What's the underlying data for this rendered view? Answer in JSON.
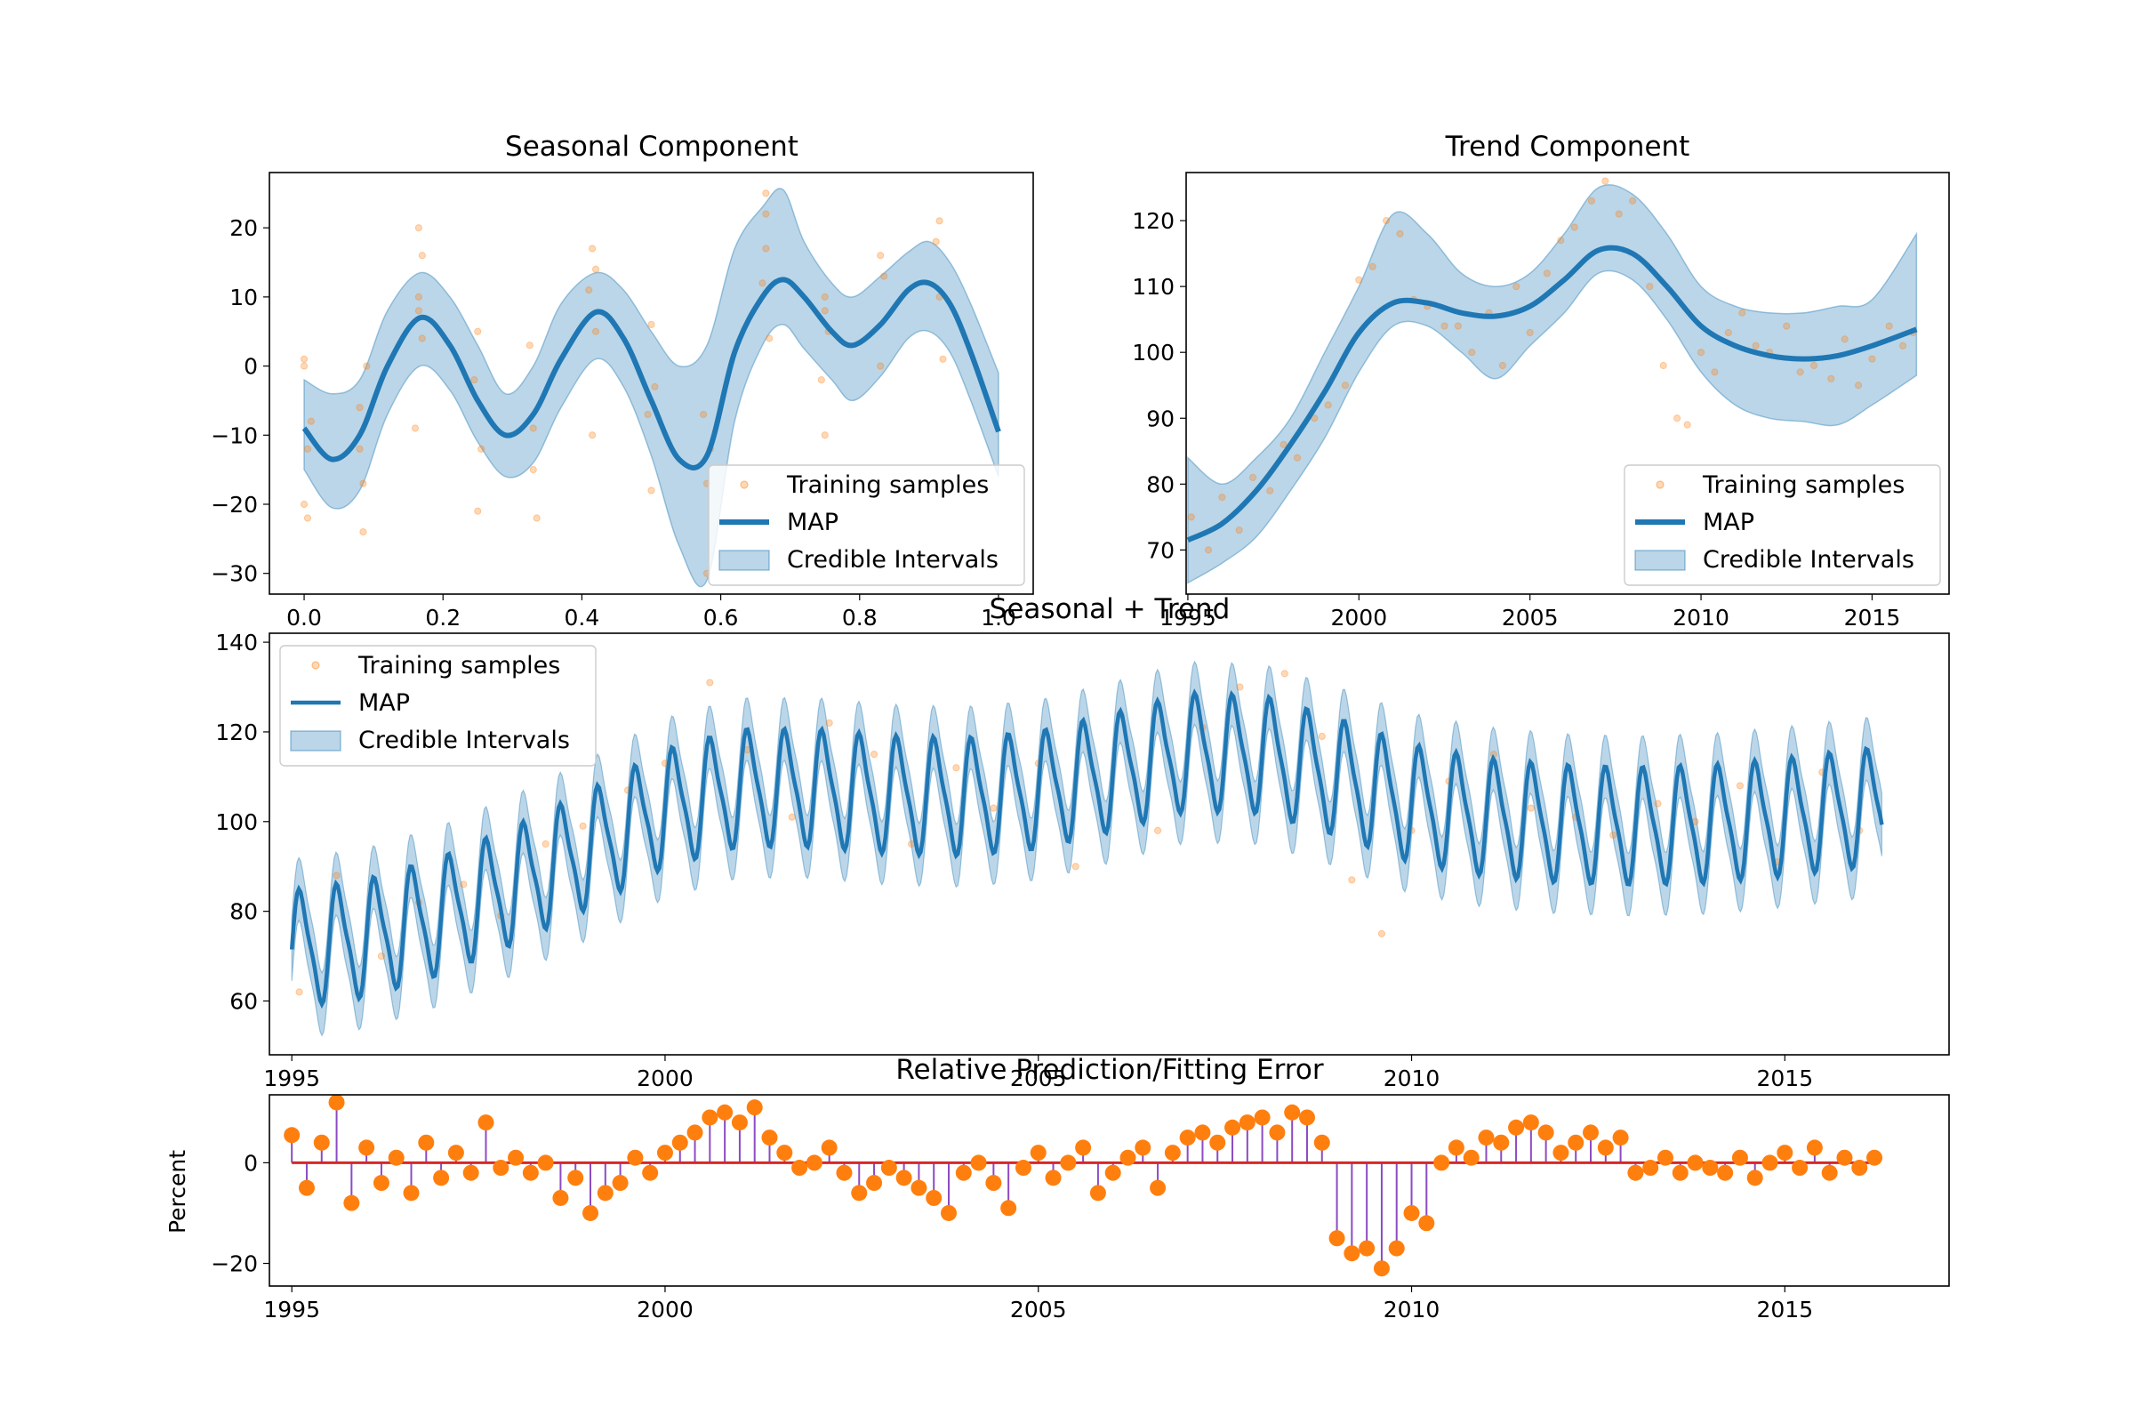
{
  "colors": {
    "map": "#1f77b4",
    "band": "#1f77b4",
    "samples": "#ff7f0e",
    "stem": "#8c4bc2",
    "baseline": "#d62728",
    "error_marker": "#ff7f0e"
  },
  "chart_data": [
    {
      "id": "seasonal",
      "type": "line",
      "title": "Seasonal Component",
      "xlabel": "",
      "ylabel": "",
      "xlim": [
        -0.05,
        1.05
      ],
      "ylim": [
        -33,
        28
      ],
      "xticks": [
        0.0,
        0.2,
        0.4,
        0.6,
        0.8,
        1.0
      ],
      "xtick_labels": [
        "0.0",
        "0.2",
        "0.4",
        "0.6",
        "0.8",
        "1.0"
      ],
      "yticks": [
        -30,
        -20,
        -10,
        0,
        10,
        20
      ],
      "ytick_labels": [
        "−30",
        "−20",
        "−10",
        "0",
        "10",
        "20"
      ],
      "legend": {
        "position": "lower-right",
        "entries": [
          "Training samples",
          "MAP",
          "Credible Intervals"
        ]
      },
      "series": [
        {
          "name": "MAP",
          "kind": "line",
          "x": [
            0.0,
            0.04,
            0.08,
            0.12,
            0.167,
            0.21,
            0.25,
            0.29,
            0.33,
            0.37,
            0.42,
            0.46,
            0.5,
            0.54,
            0.58,
            0.62,
            0.66,
            0.69,
            0.72,
            0.76,
            0.79,
            0.83,
            0.87,
            0.9,
            0.93,
            0.96,
            1.0
          ],
          "y": [
            -9,
            -13.5,
            -10,
            0,
            7,
            3,
            -5,
            -10,
            -7,
            1,
            7.8,
            4,
            -5,
            -13.5,
            -13,
            2,
            10,
            12.5,
            10,
            5,
            3,
            6,
            11,
            12,
            9,
            2,
            -9.5
          ]
        },
        {
          "name": "Credible Intervals",
          "kind": "band",
          "x": [
            0.0,
            0.04,
            0.08,
            0.12,
            0.167,
            0.21,
            0.25,
            0.29,
            0.33,
            0.37,
            0.42,
            0.46,
            0.5,
            0.54,
            0.58,
            0.62,
            0.66,
            0.69,
            0.72,
            0.76,
            0.79,
            0.83,
            0.87,
            0.9,
            0.93,
            0.96,
            1.0
          ],
          "lower": [
            -15,
            -20.5,
            -18,
            -7,
            0,
            -3.5,
            -11,
            -16,
            -14,
            -6,
            1,
            -3,
            -13,
            -26,
            -31,
            -8,
            3,
            6,
            2.5,
            -2,
            -5,
            -1.5,
            4,
            5,
            2,
            -5,
            -16
          ],
          "upper": [
            -2,
            -4,
            -2,
            8,
            13.5,
            10,
            3,
            -4,
            0,
            9,
            13.5,
            11,
            5,
            0,
            3,
            17,
            23,
            25.5,
            18,
            12,
            10,
            13,
            16.5,
            18,
            15,
            9,
            -1
          ]
        },
        {
          "name": "Training samples",
          "kind": "scatter",
          "x": [
            0.0,
            0.0,
            0.005,
            0.01,
            0.0,
            0.005,
            0.08,
            0.085,
            0.08,
            0.09,
            0.085,
            0.165,
            0.165,
            0.17,
            0.16,
            0.17,
            0.165,
            0.25,
            0.245,
            0.25,
            0.255,
            0.33,
            0.33,
            0.335,
            0.325,
            0.415,
            0.415,
            0.42,
            0.41,
            0.42,
            0.5,
            0.5,
            0.495,
            0.505,
            0.58,
            0.58,
            0.585,
            0.575,
            0.665,
            0.665,
            0.66,
            0.67,
            0.665,
            0.75,
            0.75,
            0.745,
            0.755,
            0.75,
            0.83,
            0.83,
            0.835,
            0.915,
            0.915,
            0.92,
            0.91
          ],
          "y": [
            -20,
            0,
            -12,
            -8,
            1,
            -22,
            -6,
            -24,
            -12,
            0,
            -17,
            20,
            8,
            4,
            -9,
            16,
            10,
            -21,
            -2,
            5,
            -12,
            -9,
            -15,
            -22,
            3,
            17,
            -10,
            5,
            11,
            14,
            -18,
            6,
            -7,
            -3,
            -30,
            -17,
            -12,
            -7,
            25,
            17,
            12,
            4,
            22,
            -10,
            10,
            -2,
            5,
            8,
            16,
            0,
            13,
            21,
            10,
            1,
            18
          ]
        }
      ]
    },
    {
      "id": "trend",
      "type": "line",
      "title": "Trend Component",
      "xlabel": "",
      "ylabel": "",
      "xlim": [
        1994.95,
        2017.25
      ],
      "ylim": [
        63.3,
        127.3
      ],
      "xticks": [
        1995,
        2000,
        2005,
        2010,
        2015
      ],
      "xtick_labels": [
        "1995",
        "2000",
        "2005",
        "2010",
        "2015"
      ],
      "yticks": [
        70,
        80,
        90,
        100,
        110,
        120
      ],
      "ytick_labels": [
        "70",
        "80",
        "90",
        "100",
        "110",
        "120"
      ],
      "legend": {
        "position": "lower-right",
        "entries": [
          "Training samples",
          "MAP",
          "Credible Intervals"
        ]
      },
      "series": [
        {
          "name": "MAP",
          "kind": "line",
          "x": [
            1995,
            1996,
            1997,
            1998,
            1999,
            2000,
            2001,
            2002,
            2003,
            2004,
            2005,
            2006,
            2007,
            2008,
            2009,
            2010,
            2011,
            2012,
            2013,
            2014,
            2015,
            2016.3
          ],
          "y": [
            71.5,
            74,
            79,
            86,
            94,
            103,
            107.5,
            107.5,
            106,
            105.5,
            107,
            111,
            115.5,
            115,
            110,
            104,
            101,
            99.5,
            99,
            99.5,
            101,
            103.5
          ]
        },
        {
          "name": "Credible Intervals",
          "kind": "band",
          "x": [
            1995,
            1996,
            1997,
            1998,
            1999,
            2000,
            2001,
            2002,
            2003,
            2004,
            2005,
            2006,
            2007,
            2008,
            2009,
            2010,
            2011,
            2012,
            2013,
            2014,
            2015,
            2016.3
          ],
          "lower": [
            65,
            68,
            72,
            79,
            87,
            97,
            104,
            104,
            100,
            96,
            101,
            106,
            112,
            111,
            105,
            97,
            92,
            90,
            89.5,
            89,
            92,
            96.5
          ],
          "upper": [
            84,
            80,
            84,
            90,
            100,
            110,
            121,
            118,
            112,
            110,
            112,
            118,
            125,
            124,
            118,
            110,
            107,
            106,
            106,
            107,
            108,
            118
          ]
        },
        {
          "name": "Training samples",
          "kind": "scatter",
          "x": [
            1995.1,
            1995.6,
            1996.0,
            1996.5,
            1996.9,
            1997.4,
            1997.8,
            1998.2,
            1998.7,
            1999.1,
            1999.6,
            2000.0,
            2000.4,
            2000.8,
            2001.2,
            2001.6,
            2002.0,
            2002.5,
            2002.9,
            2003.3,
            2003.8,
            2004.2,
            2004.6,
            2005.0,
            2005.5,
            2005.9,
            2006.3,
            2006.8,
            2007.2,
            2007.6,
            2008.0,
            2008.5,
            2008.9,
            2009.3,
            2009.6,
            2010.0,
            2010.4,
            2010.8,
            2011.2,
            2011.6,
            2012.0,
            2012.5,
            2012.9,
            2013.3,
            2013.8,
            2014.2,
            2014.6,
            2015.0,
            2015.5,
            2015.9,
            2016.2
          ],
          "y": [
            75,
            70,
            78,
            73,
            81,
            79,
            86,
            84,
            90,
            92,
            95,
            111,
            113,
            120,
            118,
            108,
            107,
            104,
            104,
            100,
            106,
            98,
            110,
            103,
            112,
            117,
            119,
            123,
            126,
            121,
            123,
            110,
            98,
            90,
            89,
            100,
            97,
            103,
            106,
            101,
            100,
            104,
            97,
            98,
            96,
            102,
            95,
            99,
            104,
            101,
            103
          ]
        }
      ]
    },
    {
      "id": "combined",
      "type": "line",
      "title": "Seasonal + Trend",
      "xlabel": "",
      "ylabel": "",
      "xlim": [
        1994.7,
        2017.2
      ],
      "ylim": [
        48,
        142
      ],
      "xticks": [
        1995,
        2000,
        2005,
        2010,
        2015
      ],
      "xtick_labels": [
        "1995",
        "2000",
        "2005",
        "2010",
        "2015"
      ],
      "yticks": [
        60,
        80,
        100,
        120,
        140
      ],
      "ytick_labels": [
        "60",
        "80",
        "100",
        "120",
        "140"
      ],
      "legend": {
        "position": "upper-left",
        "entries": [
          "Training samples",
          "MAP",
          "Credible Intervals"
        ]
      },
      "trend_x": [
        1995,
        1996,
        1997,
        1998,
        1999,
        2000,
        2001,
        2002,
        2003,
        2004,
        2005,
        2006,
        2007,
        2008,
        2009,
        2010,
        2011,
        2012,
        2013,
        2014,
        2015,
        2016.3
      ],
      "trend_y": [
        71.5,
        74,
        79,
        86,
        94,
        103,
        107.5,
        107.5,
        106,
        105.5,
        107,
        111,
        115.5,
        115,
        110,
        104,
        101,
        99.5,
        99,
        99.5,
        101,
        103.5
      ],
      "seasonal_amplitude": 12,
      "band_halfwidth": 7,
      "period_years": 0.5,
      "x_range": [
        1995,
        2016.3
      ],
      "series": [
        {
          "name": "Training samples",
          "kind": "scatter",
          "x": [
            1995.1,
            1995.6,
            1996.2,
            1996.7,
            1997.3,
            1997.8,
            1998.4,
            1998.9,
            1999.5,
            2000.0,
            2000.6,
            2001.1,
            2001.7,
            2002.2,
            2002.8,
            2003.3,
            2003.9,
            2004.4,
            2005.0,
            2005.5,
            2006.1,
            2006.6,
            2007.2,
            2007.7,
            2008.3,
            2008.8,
            2009.2,
            2009.6,
            2010.0,
            2010.5,
            2011.1,
            2011.6,
            2012.2,
            2012.7,
            2013.3,
            2013.8,
            2014.4,
            2014.9,
            2015.5,
            2016.0
          ],
          "y": [
            62,
            88,
            70,
            82,
            86,
            79,
            95,
            99,
            107,
            113,
            131,
            116,
            101,
            122,
            115,
            95,
            112,
            103,
            113,
            90,
            124,
            98,
            121,
            130,
            133,
            119,
            87,
            75,
            98,
            109,
            115,
            103,
            101,
            97,
            104,
            100,
            108,
            91,
            111,
            98
          ]
        }
      ]
    },
    {
      "id": "error",
      "type": "scatter",
      "title": "Relative Prediction/Fitting Error",
      "xlabel": "",
      "ylabel": "Percent",
      "xlim": [
        1994.7,
        2017.2
      ],
      "ylim": [
        -24.5,
        13.5
      ],
      "xticks": [
        1995,
        2000,
        2005,
        2010,
        2015
      ],
      "xtick_labels": [
        "1995",
        "2000",
        "2005",
        "2010",
        "2015"
      ],
      "yticks": [
        -20,
        0
      ],
      "ytick_labels": [
        "−20",
        "0"
      ],
      "baseline": 0,
      "x": [
        1995.0,
        1995.2,
        1995.4,
        1995.6,
        1995.8,
        1996.0,
        1996.2,
        1996.4,
        1996.6,
        1996.8,
        1997.0,
        1997.2,
        1997.4,
        1997.6,
        1997.8,
        1998.0,
        1998.2,
        1998.4,
        1998.6,
        1998.8,
        1999.0,
        1999.2,
        1999.4,
        1999.6,
        1999.8,
        2000.0,
        2000.2,
        2000.4,
        2000.6,
        2000.8,
        2001.0,
        2001.2,
        2001.4,
        2001.6,
        2001.8,
        2002.0,
        2002.2,
        2002.4,
        2002.6,
        2002.8,
        2003.0,
        2003.2,
        2003.4,
        2003.6,
        2003.8,
        2004.0,
        2004.2,
        2004.4,
        2004.6,
        2004.8,
        2005.0,
        2005.2,
        2005.4,
        2005.6,
        2005.8,
        2006.0,
        2006.2,
        2006.4,
        2006.6,
        2006.8,
        2007.0,
        2007.2,
        2007.4,
        2007.6,
        2007.8,
        2008.0,
        2008.2,
        2008.4,
        2008.6,
        2008.8,
        2009.0,
        2009.2,
        2009.4,
        2009.6,
        2009.8,
        2010.0,
        2010.2,
        2010.4,
        2010.6,
        2010.8,
        2011.0,
        2011.2,
        2011.4,
        2011.6,
        2011.8,
        2012.0,
        2012.2,
        2012.4,
        2012.6,
        2012.8,
        2013.0,
        2013.2,
        2013.4,
        2013.6,
        2013.8,
        2014.0,
        2014.2,
        2014.4,
        2014.6,
        2014.8,
        2015.0,
        2015.2,
        2015.4,
        2015.6,
        2015.8,
        2016.0,
        2016.2
      ],
      "y": [
        5.5,
        -5,
        4,
        12,
        -8,
        3,
        -4,
        1,
        -6,
        4,
        -3,
        2,
        -2,
        8,
        -1,
        1,
        -2,
        0,
        -7,
        -3,
        -10,
        -6,
        -4,
        1,
        -2,
        2,
        4,
        6,
        9,
        10,
        8,
        11,
        5,
        2,
        -1,
        0,
        3,
        -2,
        -6,
        -4,
        -1,
        -3,
        -5,
        -7,
        -10,
        -2,
        0,
        -4,
        -9,
        -1,
        2,
        -3,
        0,
        3,
        -6,
        -2,
        1,
        3,
        -5,
        2,
        5,
        6,
        4,
        7,
        8,
        9,
        6,
        10,
        9,
        4,
        -15,
        -18,
        -17,
        -21,
        -17,
        -10,
        -12,
        0,
        3,
        1,
        5,
        4,
        7,
        8,
        6,
        2,
        4,
        6,
        3,
        5,
        -2,
        -1,
        1,
        -2,
        0,
        -1,
        -2,
        1,
        -3,
        0,
        2,
        -1,
        3,
        -2,
        1,
        -1,
        1
      ]
    }
  ]
}
